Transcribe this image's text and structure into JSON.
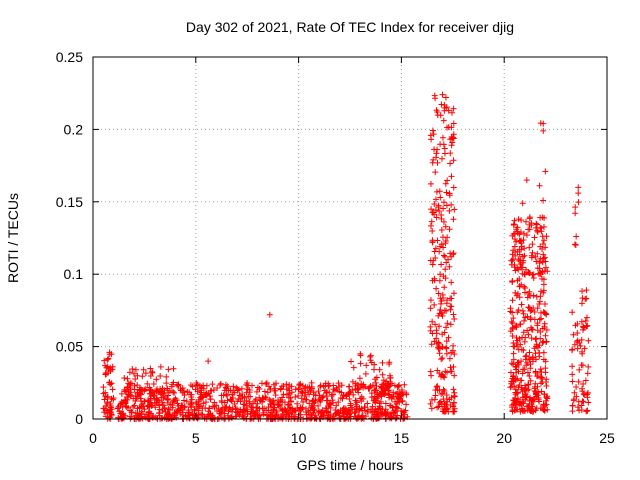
{
  "chart_data": {
    "type": "scatter",
    "title": "Day 302 of 2021, Rate Of TEC Index for receiver djig",
    "xlabel": "GPS time / hours",
    "ylabel": "ROTI / TECUs",
    "xlim": [
      0,
      25
    ],
    "ylim": [
      0,
      0.25
    ],
    "xticks": [
      0,
      5,
      10,
      15,
      20,
      25
    ],
    "yticks": [
      0,
      0.05,
      0.1,
      0.15,
      0.2,
      0.25
    ],
    "xtick_labels": [
      "0",
      "5",
      "10",
      "15",
      "20",
      "25"
    ],
    "ytick_labels": [
      "0",
      "0.05",
      "0.1",
      "0.15",
      "0.2",
      "0.25"
    ],
    "grid": true,
    "marker": "+",
    "color": "#ff0000",
    "series": [
      {
        "name": "ROTI",
        "clusters": [
          {
            "x_range": [
              0.5,
              1.0
            ],
            "y_range": [
              0.0,
              0.045
            ],
            "count": 60
          },
          {
            "x_range": [
              1.2,
              15.3
            ],
            "y_range": [
              0.0,
              0.025
            ],
            "count": 1100
          },
          {
            "x_range": [
              1.5,
              4.0
            ],
            "y_range": [
              0.018,
              0.035
            ],
            "count": 40
          },
          {
            "x_range": [
              12.5,
              14.5
            ],
            "y_range": [
              0.02,
              0.045
            ],
            "count": 50
          },
          {
            "x_range": [
              16.4,
              17.6
            ],
            "y_range": [
              0.005,
              0.225
            ],
            "count": 260
          },
          {
            "x_range": [
              20.3,
              22.1
            ],
            "y_range": [
              0.005,
              0.14
            ],
            "count": 420
          },
          {
            "x_range": [
              21.7,
              22.0
            ],
            "y_range": [
              0.1,
              0.205
            ],
            "count": 12
          },
          {
            "x_range": [
              23.3,
              24.1
            ],
            "y_range": [
              0.005,
              0.09
            ],
            "count": 70
          },
          {
            "x_range": [
              23.4,
              23.7
            ],
            "y_range": [
              0.12,
              0.16
            ],
            "count": 5
          }
        ],
        "points": [
          [
            8.6,
            0.072
          ],
          [
            5.6,
            0.04
          ],
          [
            3.3,
            0.036
          ],
          [
            21.1,
            0.165
          ],
          [
            20.9,
            0.149
          ],
          [
            17.0,
            0.224
          ],
          [
            17.3,
            0.213
          ],
          [
            21.9,
            0.204
          ],
          [
            21.9,
            0.199
          ],
          [
            23.6,
            0.16
          ],
          [
            23.6,
            0.156
          ],
          [
            23.5,
            0.126
          ],
          [
            24.0,
            0.089
          ],
          [
            24.0,
            0.064
          ],
          [
            13.0,
            0.045
          ],
          [
            14.4,
            0.038
          ],
          [
            0.8,
            0.046
          ],
          [
            21.6,
            0.13
          ],
          [
            22.0,
            0.171
          ],
          [
            20.5,
            0.137
          ]
        ]
      }
    ]
  }
}
